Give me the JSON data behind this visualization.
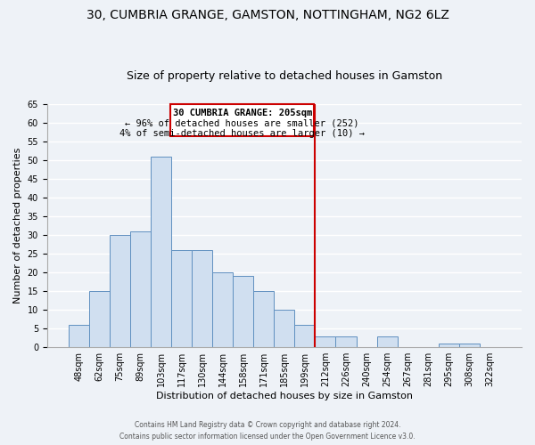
{
  "title": "30, CUMBRIA GRANGE, GAMSTON, NOTTINGHAM, NG2 6LZ",
  "subtitle": "Size of property relative to detached houses in Gamston",
  "xlabel": "Distribution of detached houses by size in Gamston",
  "ylabel": "Number of detached properties",
  "bar_labels": [
    "48sqm",
    "62sqm",
    "75sqm",
    "89sqm",
    "103sqm",
    "117sqm",
    "130sqm",
    "144sqm",
    "158sqm",
    "171sqm",
    "185sqm",
    "199sqm",
    "212sqm",
    "226sqm",
    "240sqm",
    "254sqm",
    "267sqm",
    "281sqm",
    "295sqm",
    "308sqm",
    "322sqm"
  ],
  "bar_heights": [
    6,
    15,
    30,
    31,
    51,
    26,
    26,
    20,
    19,
    15,
    10,
    6,
    3,
    3,
    0,
    3,
    0,
    0,
    1,
    1,
    0
  ],
  "bar_color": "#d0dff0",
  "bar_edge_color": "#6090c0",
  "ylim": [
    0,
    65
  ],
  "yticks": [
    0,
    5,
    10,
    15,
    20,
    25,
    30,
    35,
    40,
    45,
    50,
    55,
    60,
    65
  ],
  "vline_color": "#cc0000",
  "annotation_title": "30 CUMBRIA GRANGE: 205sqm",
  "annotation_line1": "← 96% of detached houses are smaller (252)",
  "annotation_line2": "4% of semi-detached houses are larger (10) →",
  "footer1": "Contains HM Land Registry data © Crown copyright and database right 2024.",
  "footer2": "Contains public sector information licensed under the Open Government Licence v3.0.",
  "bg_color": "#eef2f7",
  "grid_color": "#ffffff",
  "title_fontsize": 10,
  "subtitle_fontsize": 9,
  "axis_label_fontsize": 8,
  "tick_fontsize": 7
}
